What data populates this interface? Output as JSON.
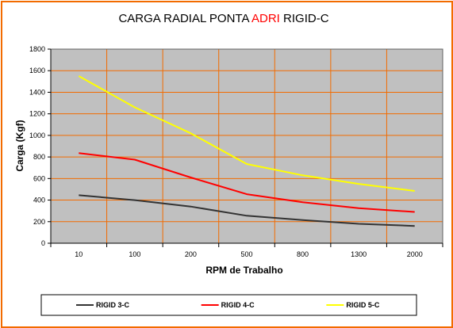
{
  "chart_data": {
    "type": "line",
    "title_parts": [
      {
        "text": "CARGA RADIAL PONTA ",
        "color": "#000000"
      },
      {
        "text": "ADRI",
        "color": "#ff0000"
      },
      {
        "text": " RIGID-C",
        "color": "#000000"
      }
    ],
    "xlabel": "RPM de Trabalho",
    "ylabel": "Carga (Kgf)",
    "categories": [
      "10",
      "100",
      "200",
      "500",
      "800",
      "1300",
      "2000"
    ],
    "ylim": [
      0,
      1800
    ],
    "yticks": [
      "0",
      "200",
      "400",
      "600",
      "800",
      "1000",
      "1200",
      "1400",
      "1600",
      "1800"
    ],
    "grid": true,
    "plot_background": "#c0c0c0",
    "grid_color": "#f26b00",
    "frame_color": "#f26b00",
    "legend_position": "bottom",
    "series": [
      {
        "name": "RIGID 3-C",
        "color": "#333333",
        "values": [
          445,
          400,
          340,
          255,
          215,
          180,
          160
        ]
      },
      {
        "name": "RIGID 4-C",
        "color": "#ff0000",
        "values": [
          835,
          775,
          610,
          455,
          380,
          325,
          290
        ]
      },
      {
        "name": "RIGID 5-C",
        "color": "#ffff00",
        "values": [
          1550,
          1260,
          1020,
          735,
          630,
          550,
          485
        ]
      }
    ]
  }
}
